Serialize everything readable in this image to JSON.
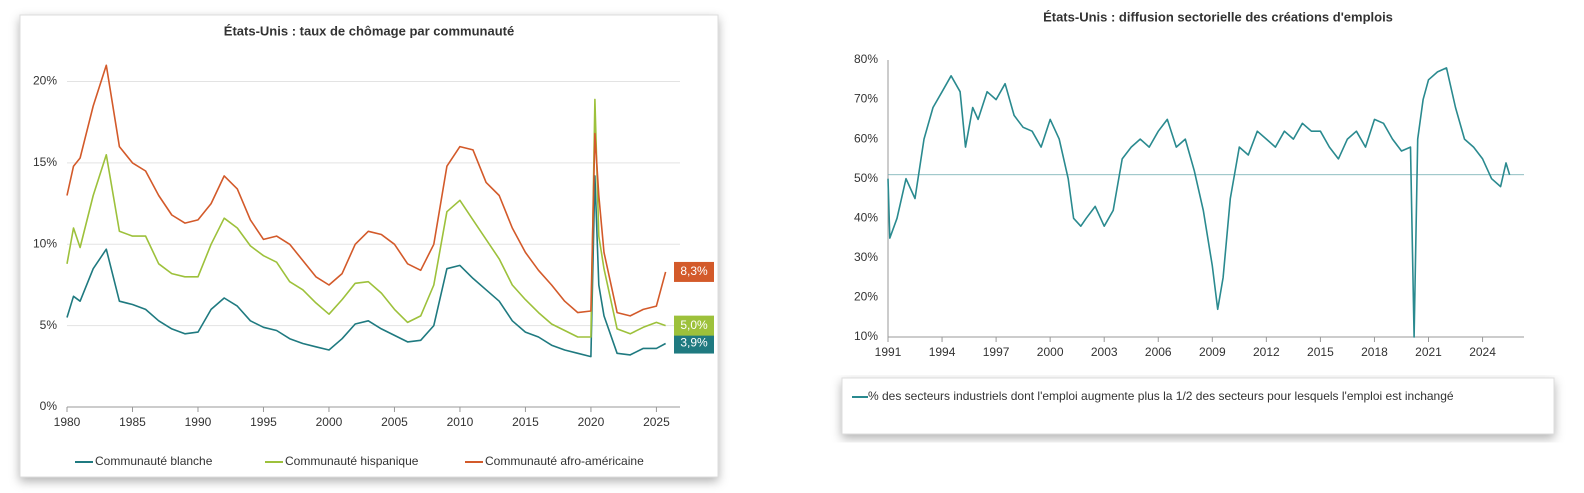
{
  "chart_data": [
    {
      "type": "line",
      "title": "États-Unis : taux de chômage par communauté",
      "x": [
        1980,
        1980.5,
        1981,
        1982,
        1983,
        1984,
        1985,
        1986,
        1987,
        1988,
        1989,
        1990,
        1991,
        1992,
        1993,
        1994,
        1995,
        1996,
        1997,
        1998,
        1999,
        2000,
        2001,
        2002,
        2003,
        2004,
        2005,
        2006,
        2007,
        2008,
        2009,
        2010,
        2011,
        2012,
        2013,
        2014,
        2015,
        2016,
        2017,
        2018,
        2019,
        2020,
        2020.3,
        2020.6,
        2021,
        2022,
        2023,
        2024,
        2025,
        2025.7
      ],
      "series": [
        {
          "name": "Communauté blanche",
          "color": "#1f7a80",
          "values": [
            5.5,
            6.8,
            6.5,
            8.5,
            9.7,
            6.5,
            6.3,
            6.0,
            5.3,
            4.8,
            4.5,
            4.6,
            6.0,
            6.7,
            6.2,
            5.3,
            4.9,
            4.7,
            4.2,
            3.9,
            3.7,
            3.5,
            4.2,
            5.1,
            5.3,
            4.8,
            4.4,
            4.0,
            4.1,
            5.0,
            8.5,
            8.7,
            7.9,
            7.2,
            6.5,
            5.3,
            4.6,
            4.3,
            3.8,
            3.5,
            3.3,
            3.1,
            14.2,
            7.5,
            5.6,
            3.3,
            3.2,
            3.6,
            3.6,
            3.9
          ],
          "end_label": {
            "value": 3.9,
            "label": "3,9%"
          }
        },
        {
          "name": "Communauté hispanique",
          "color": "#9dc13b",
          "values": [
            8.8,
            11,
            9.8,
            13,
            15.5,
            10.8,
            10.5,
            10.5,
            8.8,
            8.2,
            8.0,
            8.0,
            10,
            11.6,
            11,
            9.9,
            9.3,
            8.9,
            7.7,
            7.2,
            6.4,
            5.7,
            6.6,
            7.6,
            7.7,
            7.0,
            6.0,
            5.2,
            5.6,
            7.5,
            12.0,
            12.7,
            11.5,
            10.3,
            9.1,
            7.5,
            6.6,
            5.8,
            5.1,
            4.7,
            4.3,
            4.3,
            18.9,
            10.5,
            8.5,
            4.8,
            4.5,
            4.9,
            5.2,
            5.0
          ],
          "end_label": {
            "value": 5.0,
            "label": "5,0%"
          }
        },
        {
          "name": "Communauté afro-américaine",
          "color": "#d35a2a",
          "values": [
            13,
            14.8,
            15.3,
            18.5,
            21,
            16,
            15,
            14.5,
            13,
            11.8,
            11.3,
            11.5,
            12.5,
            14.2,
            13.4,
            11.5,
            10.3,
            10.5,
            10.0,
            9.0,
            8.0,
            7.5,
            8.2,
            10.0,
            10.8,
            10.6,
            10.0,
            8.8,
            8.4,
            10.0,
            14.8,
            16.0,
            15.8,
            13.8,
            13.0,
            11.0,
            9.5,
            8.4,
            7.5,
            6.5,
            5.8,
            5.9,
            16.8,
            13.0,
            9.5,
            5.8,
            5.6,
            6.0,
            6.2,
            8.3
          ],
          "end_label": {
            "value": 8.3,
            "label": "8,3%"
          }
        }
      ],
      "xlim": [
        1980,
        2026.8
      ],
      "xticks": [
        1980,
        1985,
        1990,
        1995,
        2000,
        2005,
        2010,
        2015,
        2020,
        2025
      ],
      "ylim": [
        0,
        22
      ],
      "yticks": [
        {
          "value": 0,
          "label": "0%"
        },
        {
          "value": 5,
          "label": "5%"
        },
        {
          "value": 10,
          "label": "10%"
        },
        {
          "value": 15,
          "label": "15%"
        },
        {
          "value": 20,
          "label": "20%"
        }
      ],
      "grid": true,
      "legend": "bottom"
    },
    {
      "type": "line",
      "title": "États-Unis : diffusion sectorielle des créations d'emplois",
      "x": [
        1991,
        1991.1,
        1991.5,
        1992,
        1992.5,
        1993,
        1993.5,
        1994,
        1994.5,
        1995,
        1995.3,
        1995.7,
        1996,
        1996.5,
        1997,
        1997.5,
        1998,
        1998.5,
        1999,
        1999.5,
        2000,
        2000.5,
        2001,
        2001.3,
        2001.7,
        2002,
        2002.5,
        2003,
        2003.5,
        2004,
        2004.5,
        2005,
        2005.5,
        2006,
        2006.5,
        2007,
        2007.5,
        2008,
        2008.5,
        2009,
        2009.3,
        2009.6,
        2010,
        2010.5,
        2011,
        2011.5,
        2012,
        2012.5,
        2013,
        2013.5,
        2014,
        2014.5,
        2015,
        2015.5,
        2016,
        2016.5,
        2017,
        2017.5,
        2018,
        2018.5,
        2019,
        2019.5,
        2020,
        2020.2,
        2020.4,
        2020.7,
        2021,
        2021.5,
        2022,
        2022.5,
        2023,
        2023.5,
        2024,
        2024.5,
        2025,
        2025.3,
        2025.5
      ],
      "series": [
        {
          "name": "% des secteurs industriels dont l'emploi augmente plus la 1/2 des secteurs pour lesquels l'emploi est inchangé",
          "color": "#2a8a8f",
          "values": [
            50,
            35,
            40,
            50,
            45,
            60,
            68,
            72,
            76,
            72,
            58,
            68,
            65,
            72,
            70,
            74,
            66,
            63,
            62,
            58,
            65,
            60,
            50,
            40,
            38,
            40,
            43,
            38,
            42,
            55,
            58,
            60,
            58,
            62,
            65,
            58,
            60,
            52,
            42,
            28,
            17,
            25,
            45,
            58,
            56,
            62,
            60,
            58,
            62,
            60,
            64,
            62,
            62,
            58,
            55,
            60,
            62,
            58,
            65,
            64,
            60,
            57,
            58,
            10,
            60,
            70,
            75,
            77,
            78,
            68,
            60,
            58,
            55,
            50,
            48,
            54,
            51
          ]
        }
      ],
      "hline": 51,
      "xlim": [
        1991,
        2026.3
      ],
      "xticks": [
        1991,
        1994,
        1997,
        2000,
        2003,
        2006,
        2009,
        2012,
        2015,
        2018,
        2021,
        2024
      ],
      "ylim": [
        10,
        80
      ],
      "yticks": [
        {
          "value": 10,
          "label": "10%"
        },
        {
          "value": 20,
          "label": "20%"
        },
        {
          "value": 30,
          "label": "30%"
        },
        {
          "value": 40,
          "label": "40%"
        },
        {
          "value": 50,
          "label": "50%"
        },
        {
          "value": 60,
          "label": "60%"
        },
        {
          "value": 70,
          "label": "70%"
        },
        {
          "value": 80,
          "label": "80%"
        }
      ],
      "grid": false,
      "legend": "bottom"
    }
  ]
}
